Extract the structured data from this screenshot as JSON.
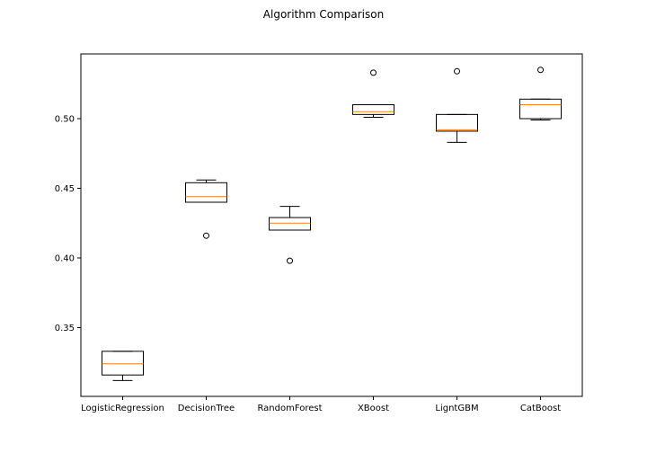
{
  "chart_data": {
    "type": "box",
    "title": "Algorithm Comparison",
    "xlabel": "",
    "ylabel": "",
    "ylim": [
      0.3,
      0.54
    ],
    "yticks": [
      0.35,
      0.4,
      0.45,
      0.5
    ],
    "ytick_labels": [
      "0.35",
      "0.40",
      "0.45",
      "0.50"
    ],
    "grid": false,
    "colors": {
      "box": "#000000",
      "median": "#ff7f0e",
      "flier": "#000000"
    },
    "categories": [
      "LogisticRegression",
      "DecisionTree",
      "RandomForest",
      "XBoost",
      "LigntGBM",
      "CatBoost"
    ],
    "boxes": [
      {
        "whisker_low": 0.312,
        "q1": 0.316,
        "median": 0.324,
        "q3": 0.333,
        "whisker_high": 0.333,
        "fliers": []
      },
      {
        "whisker_low": 0.44,
        "q1": 0.44,
        "median": 0.444,
        "q3": 0.454,
        "whisker_high": 0.456,
        "fliers": [
          0.416
        ]
      },
      {
        "whisker_low": 0.42,
        "q1": 0.42,
        "median": 0.425,
        "q3": 0.429,
        "whisker_high": 0.437,
        "fliers": [
          0.398
        ]
      },
      {
        "whisker_low": 0.501,
        "q1": 0.503,
        "median": 0.505,
        "q3": 0.51,
        "whisker_high": 0.51,
        "fliers": [
          0.533
        ]
      },
      {
        "whisker_low": 0.483,
        "q1": 0.491,
        "median": 0.492,
        "q3": 0.503,
        "whisker_high": 0.503,
        "fliers": [
          0.534
        ]
      },
      {
        "whisker_low": 0.499,
        "q1": 0.5,
        "median": 0.51,
        "q3": 0.514,
        "whisker_high": 0.514,
        "fliers": [
          0.535
        ]
      }
    ]
  }
}
